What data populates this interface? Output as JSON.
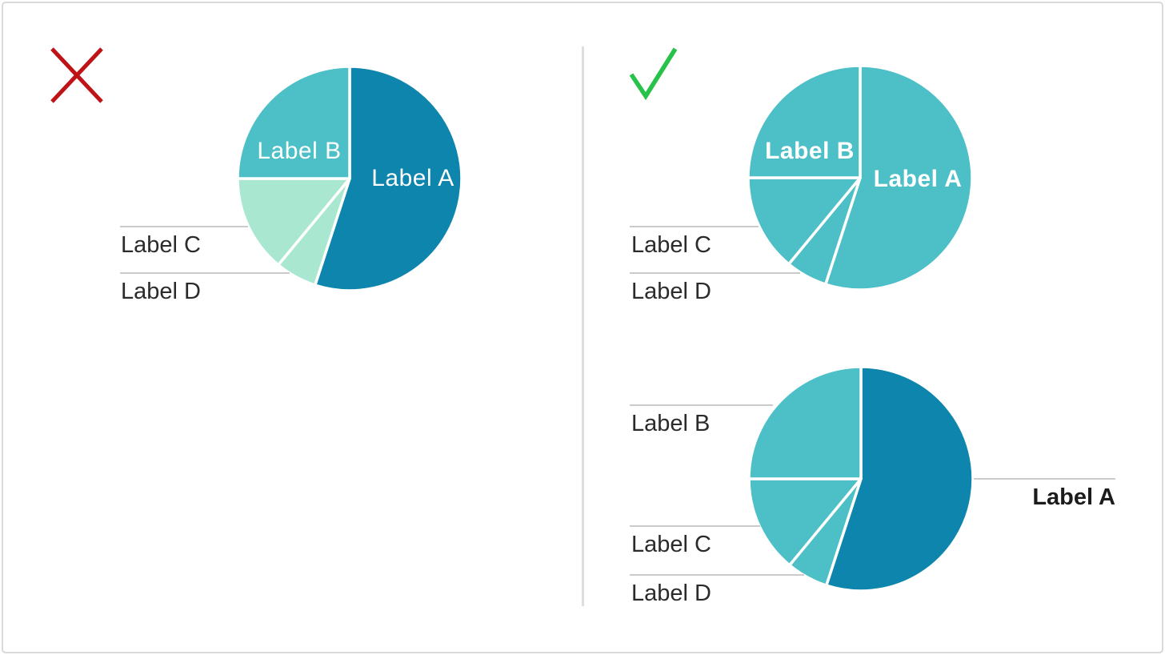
{
  "markers": {
    "dont_icon": "red-x-icon",
    "do_icon": "green-check-icon"
  },
  "colors": {
    "dark_teal": "#0e85ad",
    "teal": "#4cbfc7",
    "mint": "#a9e7d1",
    "white_stroke": "#ffffff",
    "row_label_text": "#2b2b2b",
    "leader_line": "#cbcbcb",
    "divider": "#dedede",
    "x_red": "#be1418",
    "check_green": "#27c24a"
  },
  "chart_data": [
    {
      "id": "dont-multicolor-pie",
      "type": "pie",
      "panel": "dont",
      "start_angle_deg": 0,
      "clockwise": true,
      "slices": [
        {
          "label": "Label A",
          "value": 55,
          "color": "#0e85ad"
        },
        {
          "label": "Label D",
          "value": 6,
          "color": "#a9e7d1"
        },
        {
          "label": "Label C",
          "value": 14,
          "color": "#a9e7d1"
        },
        {
          "label": "Label B",
          "value": 25,
          "color": "#4cbfc7"
        }
      ],
      "inner_labels": [
        {
          "text": "Label A",
          "bold": false
        },
        {
          "text": "Label B",
          "bold": false
        }
      ],
      "external_labels": [
        {
          "text": "Label C",
          "side": "left"
        },
        {
          "text": "Label D",
          "side": "left"
        }
      ]
    },
    {
      "id": "do-single-color-pie",
      "type": "pie",
      "panel": "do",
      "start_angle_deg": 0,
      "clockwise": true,
      "slices": [
        {
          "label": "Label A",
          "value": 55,
          "color": "#4cbfc7"
        },
        {
          "label": "Label D",
          "value": 6,
          "color": "#4cbfc7"
        },
        {
          "label": "Label C",
          "value": 14,
          "color": "#4cbfc7"
        },
        {
          "label": "Label B",
          "value": 25,
          "color": "#4cbfc7"
        }
      ],
      "inner_labels": [
        {
          "text": "Label A",
          "bold": true
        },
        {
          "text": "Label B",
          "bold": true
        }
      ],
      "external_labels": [
        {
          "text": "Label C",
          "side": "left"
        },
        {
          "text": "Label D",
          "side": "left"
        }
      ]
    },
    {
      "id": "do-emphasis-pie",
      "type": "pie",
      "panel": "do",
      "start_angle_deg": 0,
      "clockwise": true,
      "slices": [
        {
          "label": "Label A",
          "value": 55,
          "color": "#0e85ad"
        },
        {
          "label": "Label D",
          "value": 6,
          "color": "#4cbfc7"
        },
        {
          "label": "Label C",
          "value": 14,
          "color": "#4cbfc7"
        },
        {
          "label": "Label B",
          "value": 25,
          "color": "#4cbfc7"
        }
      ],
      "inner_labels": [],
      "external_labels": [
        {
          "text": "Label B",
          "side": "left"
        },
        {
          "text": "Label C",
          "side": "left"
        },
        {
          "text": "Label D",
          "side": "left"
        },
        {
          "text": "Label A",
          "side": "right",
          "bold": true
        }
      ]
    }
  ]
}
